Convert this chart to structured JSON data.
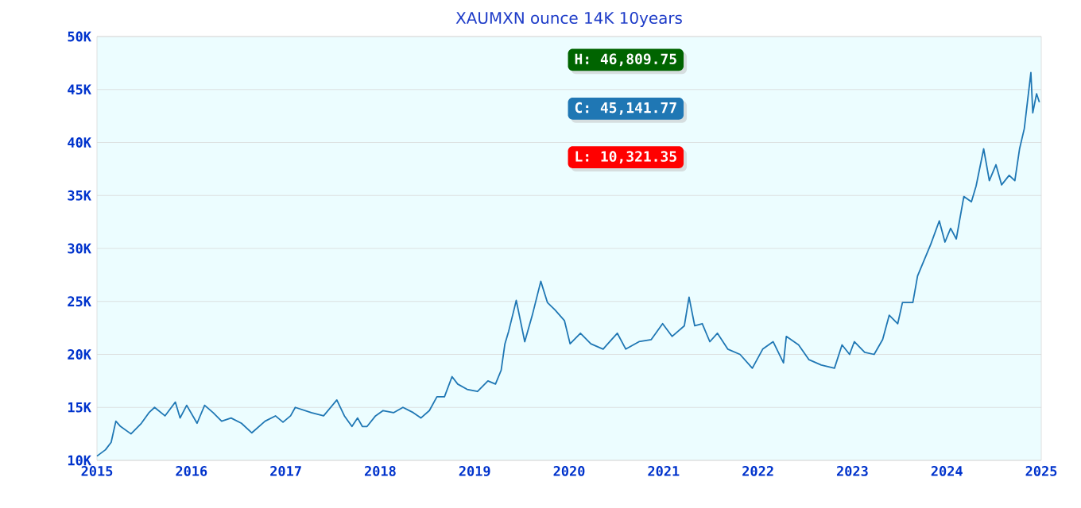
{
  "chart_data": {
    "type": "line",
    "title": "XAUMXN ounce 14K 10years",
    "x": [
      2015.0,
      2015.09,
      2015.15,
      2015.2,
      2015.25,
      2015.36,
      2015.47,
      2015.55,
      2015.61,
      2015.72,
      2015.83,
      2015.88,
      2015.95,
      2016.06,
      2016.14,
      2016.23,
      2016.32,
      2016.42,
      2016.53,
      2016.64,
      2016.78,
      2016.89,
      2016.97,
      2017.05,
      2017.1,
      2017.27,
      2017.4,
      2017.54,
      2017.62,
      2017.7,
      2017.76,
      2017.81,
      2017.86,
      2017.95,
      2018.03,
      2018.14,
      2018.24,
      2018.35,
      2018.43,
      2018.52,
      2018.6,
      2018.68,
      2018.76,
      2018.82,
      2018.92,
      2019.03,
      2019.14,
      2019.22,
      2019.28,
      2019.32,
      2019.36,
      2019.41,
      2019.44,
      2019.53,
      2019.61,
      2019.7,
      2019.77,
      2019.85,
      2019.95,
      2020.01,
      2020.12,
      2020.23,
      2020.36,
      2020.51,
      2020.6,
      2020.74,
      2020.87,
      2020.99,
      2021.09,
      2021.22,
      2021.27,
      2021.33,
      2021.41,
      2021.49,
      2021.57,
      2021.68,
      2021.81,
      2021.94,
      2022.05,
      2022.16,
      2022.27,
      2022.3,
      2022.43,
      2022.54,
      2022.67,
      2022.81,
      2022.89,
      2022.97,
      2023.02,
      2023.13,
      2023.23,
      2023.32,
      2023.39,
      2023.48,
      2023.53,
      2023.64,
      2023.69,
      2023.76,
      2023.83,
      2023.92,
      2023.98,
      2024.04,
      2024.1,
      2024.18,
      2024.26,
      2024.31,
      2024.39,
      2024.45,
      2024.52,
      2024.58,
      2024.66,
      2024.72,
      2024.77,
      2024.82,
      2024.89,
      2024.91,
      2024.95,
      2024.98
    ],
    "series": [
      {
        "color": "#1f77b4",
        "values": [
          10400,
          11000,
          11700,
          13700,
          13200,
          12500,
          13500,
          14500,
          15000,
          14200,
          15500,
          14000,
          15200,
          13500,
          15200,
          14500,
          13700,
          14000,
          13500,
          12600,
          13700,
          14200,
          13600,
          14200,
          15000,
          14500,
          14200,
          15700,
          14200,
          13200,
          14000,
          13200,
          13200,
          14200,
          14700,
          14500,
          15000,
          14500,
          14000,
          14700,
          16000,
          16000,
          17900,
          17200,
          16700,
          16500,
          17500,
          17200,
          18500,
          21000,
          22200,
          24000,
          25100,
          21200,
          23700,
          26900,
          24900,
          24200,
          23200,
          21000,
          22000,
          21000,
          20500,
          22000,
          20500,
          21200,
          21400,
          22900,
          21700,
          22700,
          25400,
          22700,
          22900,
          21200,
          22000,
          20500,
          20000,
          18700,
          20500,
          21200,
          19200,
          21700,
          20900,
          19500,
          19000,
          18700,
          20900,
          20000,
          21200,
          20200,
          20000,
          21400,
          23700,
          22900,
          24900,
          24900,
          27400,
          28900,
          30400,
          32600,
          30600,
          31900,
          30900,
          34900,
          34400,
          35900,
          39400,
          36400,
          37900,
          36000,
          36900,
          36400,
          39400,
          41300,
          46600,
          42800,
          44600,
          43800
        ]
      }
    ],
    "xlim": [
      2015,
      2025
    ],
    "xticks": [
      2015,
      2016,
      2017,
      2018,
      2019,
      2020,
      2021,
      2022,
      2023,
      2024,
      2025
    ],
    "ylim": [
      10000,
      50000
    ],
    "yticks": [
      {
        "value": 10000,
        "label": "10K"
      },
      {
        "value": 15000,
        "label": "15K"
      },
      {
        "value": 20000,
        "label": "20K"
      },
      {
        "value": 25000,
        "label": "25K"
      },
      {
        "value": 30000,
        "label": "30K"
      },
      {
        "value": 35000,
        "label": "35K"
      },
      {
        "value": 40000,
        "label": "40K"
      },
      {
        "value": 45000,
        "label": "45K"
      },
      {
        "value": 50000,
        "label": "50K"
      }
    ],
    "grid": "y",
    "marker": "none",
    "line_style": "solid",
    "annotations": [
      "H: 46,809.75",
      "C: 45,141.77",
      "L: 10,321.35"
    ]
  }
}
